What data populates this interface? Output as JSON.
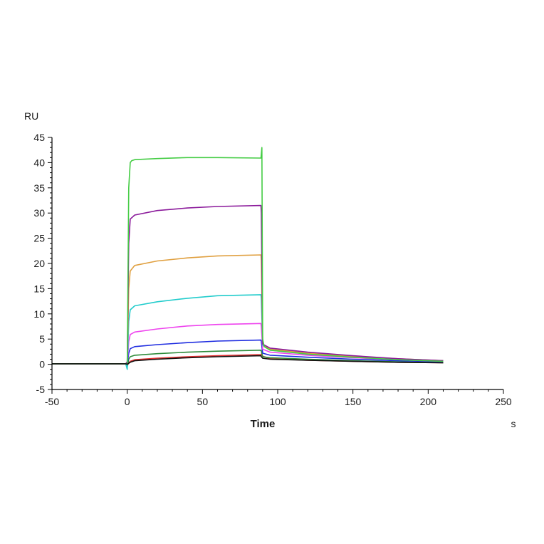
{
  "chart_data": {
    "type": "line",
    "title": "",
    "xlabel": "Time",
    "xunit": "s",
    "ylabel": "RU",
    "xlim": [
      -50,
      250
    ],
    "ylim": [
      -5,
      45
    ],
    "x_ticks": [
      -50,
      0,
      50,
      100,
      150,
      200,
      250
    ],
    "y_ticks": [
      -5,
      0,
      5,
      10,
      15,
      20,
      25,
      30,
      35,
      40,
      45
    ],
    "grid": false,
    "legend": "none",
    "series": [
      {
        "color": "#e03030",
        "x": [
          -50,
          -1,
          0,
          1,
          2,
          5,
          20,
          40,
          60,
          88.9,
          89.1,
          90,
          95,
          120,
          150,
          180,
          210
        ],
        "y": [
          0.1,
          0.1,
          -0.3,
          0.3,
          0.6,
          0.9,
          1.2,
          1.5,
          1.7,
          1.9,
          2.0,
          1.6,
          1.1,
          0.8,
          0.6,
          0.4,
          0.3
        ]
      },
      {
        "color": "#2e8b3a",
        "x": [
          -50,
          -1,
          0,
          1,
          2,
          5,
          20,
          40,
          60,
          88.9,
          89.1,
          90,
          95,
          120,
          150,
          180,
          210
        ],
        "y": [
          0.1,
          0.1,
          -0.5,
          1.0,
          1.5,
          1.8,
          2.1,
          2.4,
          2.6,
          2.8,
          2.6,
          1.5,
          1.3,
          1.0,
          0.7,
          0.5,
          0.3
        ]
      },
      {
        "color": "#1f2de0",
        "x": [
          -50,
          -1,
          0,
          1,
          2,
          5,
          20,
          40,
          60,
          88.9,
          89.1,
          90,
          95,
          120,
          150,
          180,
          210
        ],
        "y": [
          0.1,
          0.1,
          -0.2,
          2.2,
          3.1,
          3.5,
          3.9,
          4.3,
          4.6,
          4.8,
          4.5,
          2.2,
          1.8,
          1.4,
          1.0,
          0.7,
          0.5
        ]
      },
      {
        "color": "#ee44ee",
        "x": [
          -50,
          -1,
          0,
          1,
          2,
          5,
          20,
          40,
          60,
          88.9,
          89.1,
          90,
          95,
          120,
          150,
          180,
          210
        ],
        "y": [
          0.1,
          0.1,
          -0.4,
          4.5,
          5.9,
          6.4,
          7.0,
          7.6,
          7.9,
          8.1,
          7.5,
          3.0,
          2.4,
          1.8,
          1.3,
          0.9,
          0.6
        ]
      },
      {
        "color": "#22cccc",
        "x": [
          -50,
          -1,
          0,
          1,
          2,
          5,
          20,
          40,
          60,
          88.9,
          89.1,
          90,
          95,
          120,
          150,
          180,
          210
        ],
        "y": [
          0.1,
          0.1,
          -1.0,
          8.5,
          10.8,
          11.6,
          12.4,
          13.1,
          13.6,
          13.8,
          13.0,
          3.8,
          2.8,
          2.1,
          1.5,
          1.0,
          0.7
        ]
      },
      {
        "color": "#e0a040",
        "x": [
          -50,
          -1,
          0,
          1,
          2,
          5,
          20,
          40,
          60,
          88.9,
          89.1,
          90,
          95,
          120,
          150,
          180,
          210
        ],
        "y": [
          0.1,
          0.1,
          0.0,
          15.0,
          18.5,
          19.6,
          20.5,
          21.1,
          21.5,
          21.7,
          20.5,
          4.0,
          3.0,
          2.2,
          1.6,
          1.1,
          0.7
        ]
      },
      {
        "color": "#8b1a9b",
        "x": [
          -50,
          -1,
          0,
          1,
          2,
          5,
          20,
          40,
          60,
          88.9,
          89.1,
          90,
          95,
          120,
          150,
          180,
          210
        ],
        "y": [
          0.1,
          0.1,
          0.5,
          24.0,
          28.8,
          29.6,
          30.5,
          31.0,
          31.3,
          31.5,
          30.0,
          4.0,
          3.2,
          2.4,
          1.7,
          1.1,
          0.7
        ]
      },
      {
        "color": "#44cc44",
        "x": [
          -50,
          -1,
          0,
          1,
          2,
          3,
          5,
          20,
          40,
          60,
          88.9,
          89.5,
          90,
          91,
          95,
          120,
          150,
          180,
          210
        ],
        "y": [
          0.1,
          0.1,
          0.0,
          35.0,
          40.0,
          40.4,
          40.6,
          40.8,
          41.0,
          41.0,
          40.9,
          43.0,
          5.0,
          3.5,
          2.8,
          2.0,
          1.4,
          0.9,
          0.6
        ]
      },
      {
        "color": "#111111",
        "x": [
          -50,
          -1,
          0,
          1,
          2,
          5,
          20,
          40,
          60,
          88.9,
          89.1,
          90,
          95,
          120,
          150,
          180,
          210
        ],
        "y": [
          0.1,
          0.1,
          0.0,
          0.2,
          0.4,
          0.7,
          1.0,
          1.3,
          1.5,
          1.7,
          1.5,
          1.2,
          1.0,
          0.8,
          0.6,
          0.4,
          0.3
        ]
      }
    ]
  }
}
